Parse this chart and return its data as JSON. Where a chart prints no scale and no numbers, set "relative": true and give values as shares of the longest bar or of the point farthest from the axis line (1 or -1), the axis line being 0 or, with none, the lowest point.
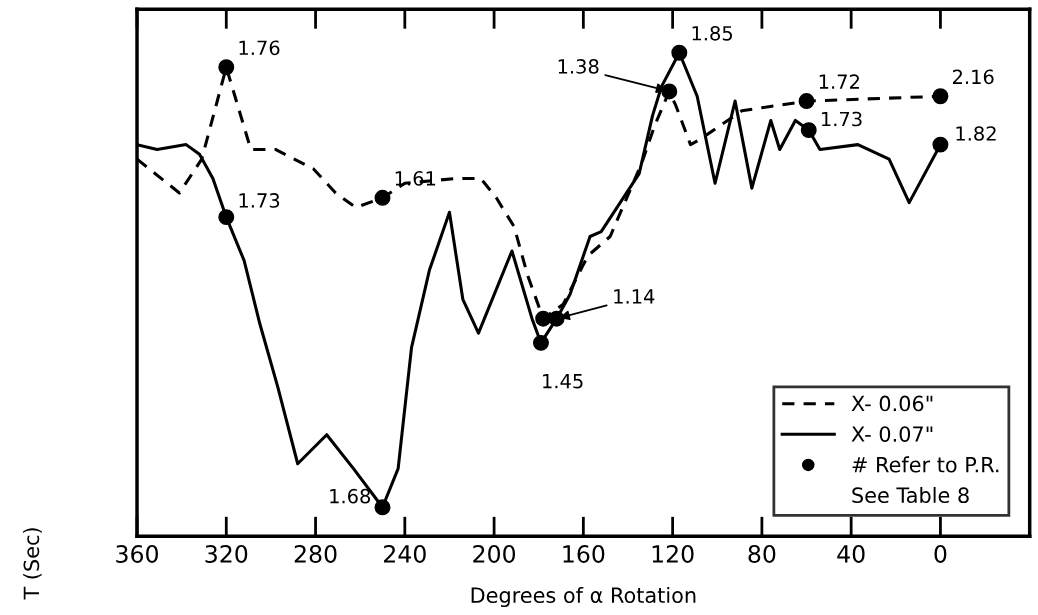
{
  "chart_data": {
    "type": "line",
    "relative": true,
    "xlabel": "Degrees of α Rotation",
    "ylabel": "T (Sec)",
    "xlim": [
      360,
      -40
    ],
    "xticks": [
      360,
      320,
      280,
      240,
      200,
      160,
      120,
      80,
      40,
      0
    ],
    "legend": "bottom right",
    "grid": false,
    "series": [
      {
        "name": "X- 0.06\"",
        "color": "#000000",
        "line_style": "dashed",
        "x": [
          360,
          341,
          331,
          320,
          309,
          298,
          281,
          271,
          262,
          250,
          240,
          217,
          206,
          199,
          191,
          185,
          178,
          169,
          158,
          148,
          134,
          128,
          121.5,
          118.5,
          112,
          108,
          89,
          60,
          0
        ],
        "values": [
          0.78,
          0.71,
          0.78,
          0.97,
          0.8,
          0.8,
          0.76,
          0.71,
          0.68,
          0.7,
          0.73,
          0.74,
          0.74,
          0.7,
          0.64,
          0.54,
          0.45,
          0.48,
          0.58,
          0.62,
          0.77,
          0.85,
          0.92,
          0.89,
          0.81,
          0.82,
          0.88,
          0.9,
          0.91
        ]
      },
      {
        "name": "X- 0.07\"",
        "color": "#000000",
        "line_style": "solid",
        "x": [
          360,
          351,
          338,
          332,
          326,
          320,
          312,
          305,
          297,
          288,
          275,
          263,
          250,
          243,
          237,
          229,
          220,
          214,
          207,
          192,
          183,
          179,
          172,
          166,
          157,
          152,
          135,
          129,
          125,
          117,
          109,
          101,
          92,
          84.5,
          76,
          72,
          65,
          59,
          54,
          37,
          23,
          14,
          0
        ],
        "values": [
          0.81,
          0.8,
          0.81,
          0.79,
          0.74,
          0.66,
          0.57,
          0.44,
          0.31,
          0.15,
          0.21,
          0.14,
          0.06,
          0.14,
          0.39,
          0.55,
          0.67,
          0.49,
          0.42,
          0.59,
          0.45,
          0.4,
          0.45,
          0.5,
          0.62,
          0.63,
          0.75,
          0.87,
          0.93,
          1.0,
          0.91,
          0.73,
          0.9,
          0.72,
          0.86,
          0.8,
          0.86,
          0.84,
          0.8,
          0.81,
          0.78,
          0.69,
          0.81
        ]
      },
      {
        "name": "# Refer to P.R.",
        "type": "scatter",
        "marker": "circle",
        "color": "#000000",
        "x": [
          320,
          320,
          250,
          250,
          178,
          172,
          179,
          121.5,
          117,
          60,
          59,
          0,
          0
        ],
        "values": [
          0.97,
          0.66,
          0.7,
          0.06,
          0.45,
          0.45,
          0.4,
          0.92,
          1.0,
          0.9,
          0.84,
          0.91,
          0.81
        ]
      }
    ],
    "annotations": [
      {
        "text": "1.76",
        "x": 320,
        "y": 0.97
      },
      {
        "text": "1.73",
        "x": 320,
        "y": 0.66
      },
      {
        "text": "1.61",
        "x": 250,
        "y": 0.7
      },
      {
        "text": "1.68",
        "x": 250,
        "y": 0.06
      },
      {
        "text": "1.14",
        "x": 172,
        "y": 0.45
      },
      {
        "text": "1.45",
        "x": 179,
        "y": 0.4
      },
      {
        "text": "1.38",
        "x": 121.5,
        "y": 0.92
      },
      {
        "text": "1.85",
        "x": 117,
        "y": 1.0
      },
      {
        "text": "1.72",
        "x": 60,
        "y": 0.9
      },
      {
        "text": "1.73",
        "x": 59,
        "y": 0.84
      },
      {
        "text": "2.16",
        "x": 0,
        "y": 0.91
      },
      {
        "text": "1.82",
        "x": 0,
        "y": 0.81
      },
      "See Table 8"
    ]
  }
}
